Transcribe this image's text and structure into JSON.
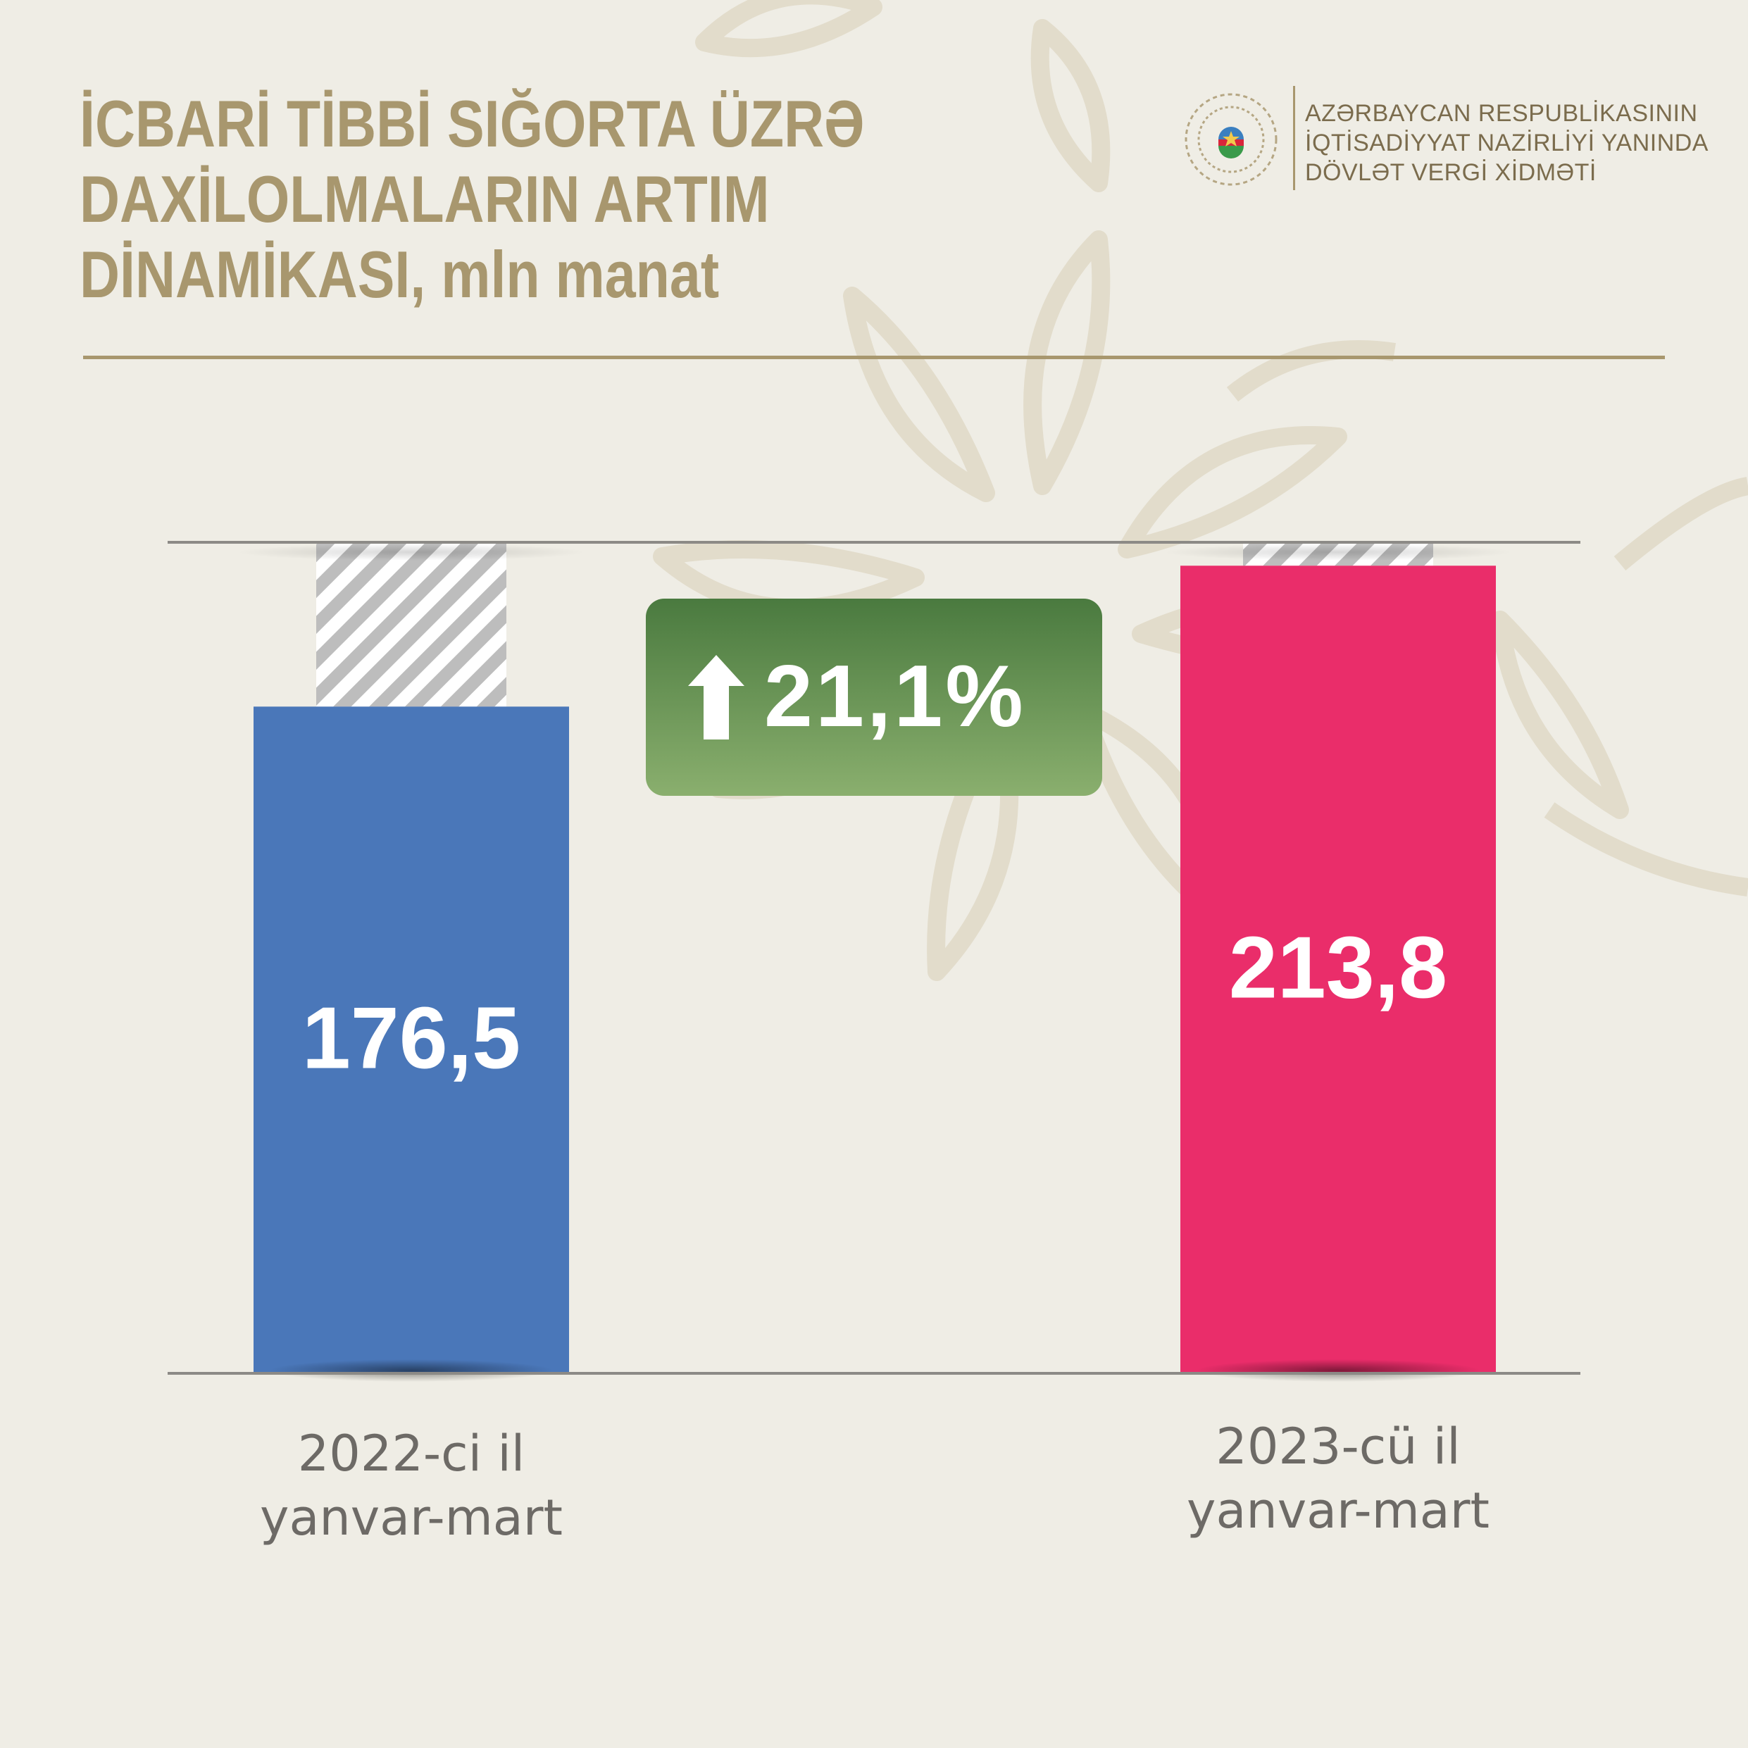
{
  "title_lines": [
    "İCBARİ TİBBİ SIĞORTA ÜZRƏ",
    "DAXİLOLMALARIN ARTIM",
    "DİNAMİKASI, mln manat"
  ],
  "org_lines": [
    "AZƏRBAYCAN RESPUBLİKASININ",
    "İQTİSADİYYAT NAZİRLİYİ YANINDA",
    "DÖVLƏT VERGİ XİDMƏTİ"
  ],
  "badge": {
    "icon": "up-arrow-icon",
    "text": "21,1%"
  },
  "colors": {
    "title": "#a8976e",
    "bar_2022": "#4a77b9",
    "bar_2023": "#ea2d6a",
    "badge_top": "#4a7a3f",
    "badge_bottom": "#8aaf6e"
  },
  "chart_data": {
    "type": "bar",
    "categories": [
      "2022-ci il yanvar-mart",
      "2023-cü il yanvar-mart"
    ],
    "category_lines": [
      [
        "2022-ci il",
        "yanvar-mart"
      ],
      [
        "2023-cü il",
        "yanvar-mart"
      ]
    ],
    "values": [
      176.5,
      213.8
    ],
    "value_labels": [
      "176,5",
      "213,8"
    ],
    "ylim": [
      0,
      220
    ],
    "grid": false,
    "bar_colors": [
      "#4a77b9",
      "#ea2d6a"
    ],
    "annotation": "21,1%"
  }
}
